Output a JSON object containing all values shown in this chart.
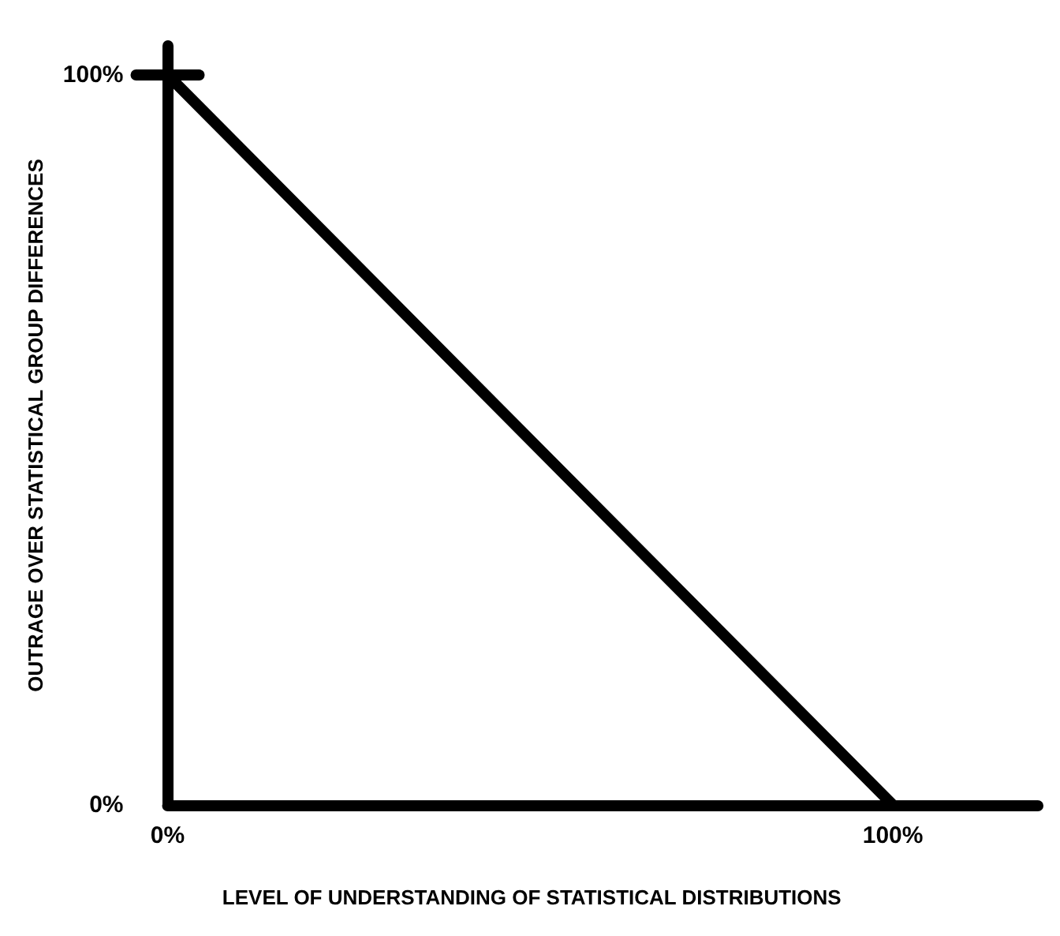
{
  "chart_data": {
    "type": "line",
    "xlabel": "LEVEL OF UNDERSTANDING OF STATISTICAL DISTRIBUTIONS",
    "ylabel": "OUTRAGE OVER STATISTICAL GROUP DIFFERENCES",
    "x": [
      0,
      100
    ],
    "series": [
      {
        "color": "#000000",
        "values": [
          100,
          0
        ]
      }
    ],
    "xlim": [
      0,
      120
    ],
    "ylim": [
      0,
      104
    ],
    "xticks": [
      {
        "value": 0,
        "label": "0%"
      },
      {
        "value": 100,
        "label": "100%"
      }
    ],
    "yticks": [
      {
        "value": 0,
        "label": "0%"
      },
      {
        "value": 100,
        "label": "100%"
      }
    ],
    "marker": "none",
    "line_style": "solid"
  }
}
